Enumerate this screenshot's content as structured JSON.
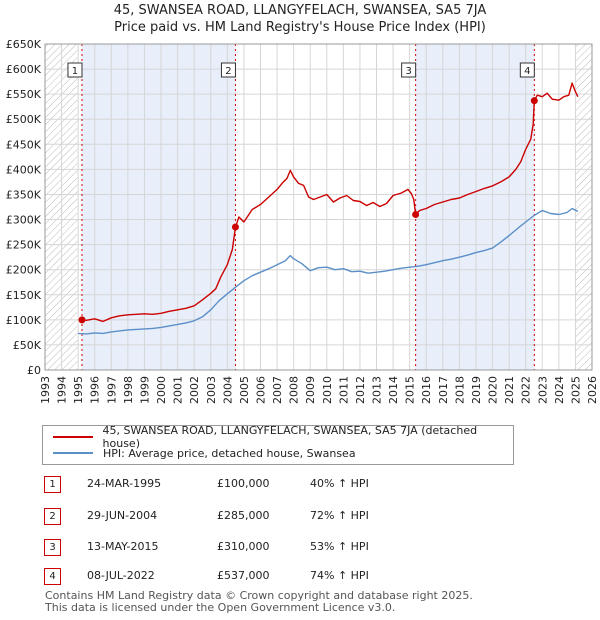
{
  "chart_data": {
    "type": "line",
    "title": "45, SWANSEA ROAD, LLANGYFELACH, SWANSEA, SA5 7JA",
    "subtitle": "Price paid vs. HM Land Registry's House Price Index (HPI)",
    "xlabel": "",
    "ylabel": "",
    "xlim": [
      1993,
      2026
    ],
    "ylim": [
      0,
      650000
    ],
    "y_ticks": [
      {
        "value": 0,
        "label": "£0"
      },
      {
        "value": 50000,
        "label": "£50K"
      },
      {
        "value": 100000,
        "label": "£100K"
      },
      {
        "value": 150000,
        "label": "£150K"
      },
      {
        "value": 200000,
        "label": "£200K"
      },
      {
        "value": 250000,
        "label": "£250K"
      },
      {
        "value": 300000,
        "label": "£300K"
      },
      {
        "value": 350000,
        "label": "£350K"
      },
      {
        "value": 400000,
        "label": "£400K"
      },
      {
        "value": 450000,
        "label": "£450K"
      },
      {
        "value": 500000,
        "label": "£500K"
      },
      {
        "value": 550000,
        "label": "£550K"
      },
      {
        "value": 600000,
        "label": "£600K"
      },
      {
        "value": 650000,
        "label": "£650K"
      }
    ],
    "x_ticks": [
      "1993",
      "1994",
      "1995",
      "1996",
      "1997",
      "1998",
      "1999",
      "2000",
      "2001",
      "2002",
      "2003",
      "2004",
      "2005",
      "2006",
      "2007",
      "2008",
      "2009",
      "2010",
      "2011",
      "2012",
      "2013",
      "2014",
      "2015",
      "2016",
      "2017",
      "2018",
      "2019",
      "2020",
      "2021",
      "2022",
      "2023",
      "2024",
      "2025",
      "2026"
    ],
    "grid": true,
    "ownership_periods": [
      {
        "from": 1995.23,
        "to": 2004.49
      },
      {
        "from": 2015.36,
        "to": 2022.52
      }
    ],
    "hatched_regions": [
      {
        "from": 1993.0,
        "to": 1994.95
      },
      {
        "from": 2025.0,
        "to": 2026.0
      }
    ],
    "series": [
      {
        "name": "45, SWANSEA ROAD, LLANGYFELACH, SWANSEA, SA5 7JA (detached house)",
        "color": "#cc0000",
        "points": [
          [
            1995.23,
            100000
          ],
          [
            1995.5,
            99000
          ],
          [
            1996.0,
            102000
          ],
          [
            1996.5,
            97000
          ],
          [
            1997.0,
            104000
          ],
          [
            1997.5,
            108000
          ],
          [
            1998.0,
            110000
          ],
          [
            1998.5,
            111000
          ],
          [
            1999.0,
            112000
          ],
          [
            1999.5,
            111000
          ],
          [
            2000.0,
            113000
          ],
          [
            2000.5,
            117000
          ],
          [
            2001.0,
            120000
          ],
          [
            2001.5,
            123000
          ],
          [
            2002.0,
            128000
          ],
          [
            2002.5,
            140000
          ],
          [
            2003.0,
            153000
          ],
          [
            2003.3,
            162000
          ],
          [
            2003.6,
            185000
          ],
          [
            2004.0,
            210000
          ],
          [
            2004.3,
            240000
          ],
          [
            2004.49,
            285000
          ],
          [
            2004.7,
            305000
          ],
          [
            2005.0,
            295000
          ],
          [
            2005.5,
            320000
          ],
          [
            2006.0,
            330000
          ],
          [
            2006.5,
            345000
          ],
          [
            2007.0,
            360000
          ],
          [
            2007.3,
            372000
          ],
          [
            2007.6,
            382000
          ],
          [
            2007.8,
            398000
          ],
          [
            2008.0,
            385000
          ],
          [
            2008.3,
            372000
          ],
          [
            2008.6,
            368000
          ],
          [
            2008.9,
            345000
          ],
          [
            2009.2,
            340000
          ],
          [
            2009.6,
            345000
          ],
          [
            2010.0,
            350000
          ],
          [
            2010.4,
            335000
          ],
          [
            2010.8,
            343000
          ],
          [
            2011.2,
            348000
          ],
          [
            2011.6,
            338000
          ],
          [
            2012.0,
            336000
          ],
          [
            2012.4,
            328000
          ],
          [
            2012.8,
            334000
          ],
          [
            2013.2,
            326000
          ],
          [
            2013.6,
            332000
          ],
          [
            2014.0,
            348000
          ],
          [
            2014.5,
            353000
          ],
          [
            2014.9,
            360000
          ],
          [
            2015.1,
            352000
          ],
          [
            2015.25,
            340000
          ],
          [
            2015.36,
            310000
          ],
          [
            2015.6,
            318000
          ],
          [
            2016.0,
            322000
          ],
          [
            2016.5,
            330000
          ],
          [
            2017.0,
            335000
          ],
          [
            2017.5,
            340000
          ],
          [
            2018.0,
            343000
          ],
          [
            2018.5,
            350000
          ],
          [
            2019.0,
            356000
          ],
          [
            2019.5,
            362000
          ],
          [
            2020.0,
            367000
          ],
          [
            2020.5,
            375000
          ],
          [
            2021.0,
            385000
          ],
          [
            2021.4,
            400000
          ],
          [
            2021.7,
            415000
          ],
          [
            2022.0,
            440000
          ],
          [
            2022.3,
            460000
          ],
          [
            2022.45,
            490000
          ],
          [
            2022.52,
            537000
          ],
          [
            2022.7,
            548000
          ],
          [
            2023.0,
            545000
          ],
          [
            2023.3,
            552000
          ],
          [
            2023.6,
            540000
          ],
          [
            2024.0,
            538000
          ],
          [
            2024.3,
            545000
          ],
          [
            2024.6,
            548000
          ],
          [
            2024.8,
            572000
          ],
          [
            2025.0,
            555000
          ],
          [
            2025.15,
            545000
          ]
        ]
      },
      {
        "name": "HPI: Average price, detached house, Swansea",
        "color": "#5b8fc7",
        "points": [
          [
            1995.0,
            73000
          ],
          [
            1995.5,
            72000
          ],
          [
            1996.0,
            74000
          ],
          [
            1996.5,
            73000
          ],
          [
            1997.0,
            76000
          ],
          [
            1997.5,
            78000
          ],
          [
            1998.0,
            80000
          ],
          [
            1998.5,
            81000
          ],
          [
            1999.0,
            82000
          ],
          [
            1999.5,
            83000
          ],
          [
            2000.0,
            85000
          ],
          [
            2000.5,
            88000
          ],
          [
            2001.0,
            91000
          ],
          [
            2001.5,
            94000
          ],
          [
            2002.0,
            98000
          ],
          [
            2002.5,
            106000
          ],
          [
            2003.0,
            120000
          ],
          [
            2003.5,
            138000
          ],
          [
            2004.0,
            152000
          ],
          [
            2004.5,
            165000
          ],
          [
            2005.0,
            178000
          ],
          [
            2005.5,
            188000
          ],
          [
            2006.0,
            195000
          ],
          [
            2006.5,
            202000
          ],
          [
            2007.0,
            210000
          ],
          [
            2007.5,
            218000
          ],
          [
            2007.8,
            228000
          ],
          [
            2008.0,
            222000
          ],
          [
            2008.5,
            212000
          ],
          [
            2009.0,
            198000
          ],
          [
            2009.5,
            204000
          ],
          [
            2010.0,
            205000
          ],
          [
            2010.5,
            200000
          ],
          [
            2011.0,
            202000
          ],
          [
            2011.5,
            196000
          ],
          [
            2012.0,
            197000
          ],
          [
            2012.5,
            193000
          ],
          [
            2013.0,
            195000
          ],
          [
            2013.5,
            197000
          ],
          [
            2014.0,
            200000
          ],
          [
            2014.5,
            203000
          ],
          [
            2015.0,
            205000
          ],
          [
            2015.5,
            207000
          ],
          [
            2016.0,
            210000
          ],
          [
            2016.5,
            214000
          ],
          [
            2017.0,
            218000
          ],
          [
            2017.5,
            221000
          ],
          [
            2018.0,
            225000
          ],
          [
            2018.5,
            229000
          ],
          [
            2019.0,
            234000
          ],
          [
            2019.5,
            238000
          ],
          [
            2020.0,
            243000
          ],
          [
            2020.5,
            255000
          ],
          [
            2021.0,
            268000
          ],
          [
            2021.5,
            282000
          ],
          [
            2022.0,
            295000
          ],
          [
            2022.5,
            308000
          ],
          [
            2023.0,
            318000
          ],
          [
            2023.5,
            312000
          ],
          [
            2024.0,
            310000
          ],
          [
            2024.5,
            314000
          ],
          [
            2024.8,
            322000
          ],
          [
            2025.15,
            316000
          ]
        ]
      }
    ],
    "sale_markers": [
      {
        "label": "1",
        "x": 1995.23,
        "y": 100000
      },
      {
        "label": "2",
        "x": 2004.49,
        "y": 285000
      },
      {
        "label": "3",
        "x": 2015.36,
        "y": 310000
      },
      {
        "label": "4",
        "x": 2022.52,
        "y": 537000
      }
    ]
  },
  "legend": {
    "property_label": "45, SWANSEA ROAD, LLANGYFELACH, SWANSEA, SA5 7JA (detached house)",
    "hpi_label": "HPI: Average price, detached house, Swansea"
  },
  "sales": [
    {
      "num": "1",
      "date": "24-MAR-1995",
      "price": "£100,000",
      "hpi": "40% ↑ HPI"
    },
    {
      "num": "2",
      "date": "29-JUN-2004",
      "price": "£285,000",
      "hpi": "72% ↑ HPI"
    },
    {
      "num": "3",
      "date": "13-MAY-2015",
      "price": "£310,000",
      "hpi": "53% ↑ HPI"
    },
    {
      "num": "4",
      "date": "08-JUL-2022",
      "price": "£537,000",
      "hpi": "74% ↑ HPI"
    }
  ],
  "footer": {
    "line1": "Contains HM Land Registry data © Crown copyright and database right 2025.",
    "line2": "This data is licensed under the Open Government Licence v3.0."
  },
  "colors": {
    "property_line": "#cc0000",
    "hpi_line": "#5b8fc7",
    "ownership_shade": "#e8eefa",
    "grid": "#d6d6d6"
  }
}
